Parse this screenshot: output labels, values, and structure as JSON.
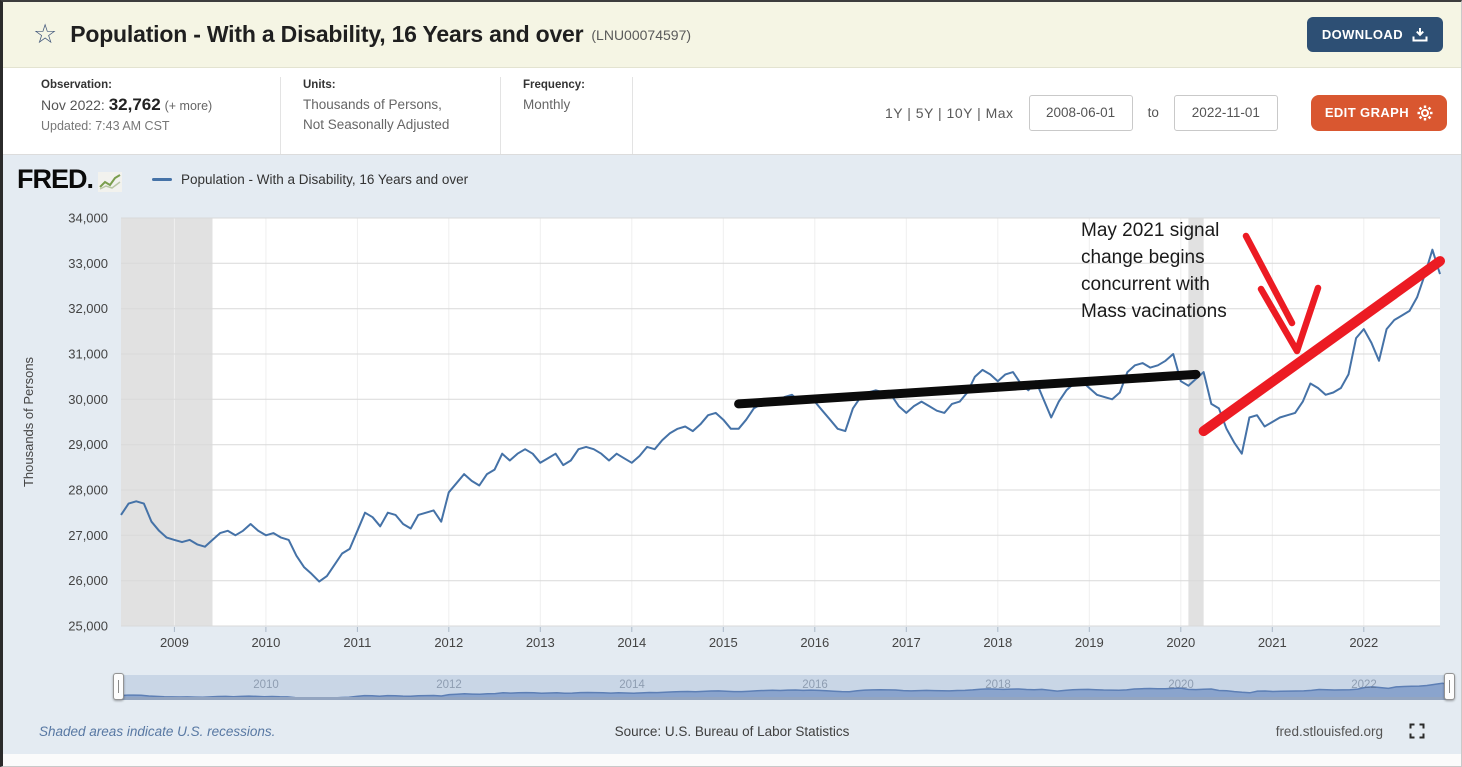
{
  "header": {
    "title": "Population - With a Disability, 16 Years and over",
    "series_id": "(LNU00074597)",
    "download_label": "DOWNLOAD"
  },
  "toolbar": {
    "observation": {
      "label": "Observation:",
      "date": "Nov 2022:",
      "value": "32,762",
      "more": "(+ more)",
      "updated": "Updated: 7:43 AM CST"
    },
    "units": {
      "label": "Units:",
      "line1": "Thousands of Persons,",
      "line2": "Not Seasonally Adjusted"
    },
    "frequency": {
      "label": "Frequency:",
      "value": "Monthly"
    },
    "ranges": "1Y | 5Y | 10Y | Max",
    "date_from": "2008-06-01",
    "to_label": "to",
    "date_to": "2022-11-01",
    "edit_graph_label": "EDIT GRAPH"
  },
  "legend": {
    "logo_text": "FRED.",
    "series_label": "Population - With a Disability, 16 Years and over"
  },
  "chart_data": {
    "type": "line",
    "title": "Population - With a Disability, 16 Years and over",
    "ylabel": "Thousands of Persons",
    "ylim": [
      25000,
      34000
    ],
    "ytick_step": 1000,
    "grid": "horizontal",
    "x_start": "2008-06",
    "x_end": "2022-11",
    "x_year_labels": [
      2009,
      2010,
      2011,
      2012,
      2013,
      2014,
      2015,
      2016,
      2017,
      2018,
      2019,
      2020,
      2021,
      2022
    ],
    "recessions": [
      {
        "from": "2008-06",
        "to": "2009-06"
      },
      {
        "from": "2020-02",
        "to": "2020-04"
      }
    ],
    "colors": {
      "line": "#4572a7",
      "recession": "#e1e1e1",
      "trend_black": "#0b0b0b",
      "trend_red": "#ec1b23"
    },
    "series": [
      {
        "name": "Population - With a Disability, 16 Years and over",
        "color": "#4572a7",
        "values": [
          27450,
          27700,
          27750,
          27700,
          27300,
          27100,
          26950,
          26900,
          26850,
          26900,
          26800,
          26750,
          26900,
          27050,
          27100,
          27000,
          27100,
          27250,
          27100,
          27000,
          27050,
          26950,
          26900,
          26550,
          26300,
          26150,
          25980,
          26100,
          26350,
          26600,
          26700,
          27100,
          27500,
          27400,
          27200,
          27500,
          27450,
          27250,
          27150,
          27450,
          27500,
          27550,
          27300,
          27950,
          28150,
          28350,
          28200,
          28100,
          28350,
          28450,
          28800,
          28650,
          28800,
          28900,
          28800,
          28600,
          28700,
          28800,
          28550,
          28650,
          28900,
          28950,
          28900,
          28800,
          28650,
          28800,
          28700,
          28600,
          28750,
          28950,
          28900,
          29100,
          29250,
          29350,
          29400,
          29300,
          29450,
          29650,
          29700,
          29550,
          29350,
          29350,
          29550,
          29800,
          29900,
          30000,
          29900,
          30050,
          30100,
          29950,
          30050,
          29950,
          29750,
          29550,
          29350,
          29300,
          29800,
          30050,
          30150,
          30200,
          30150,
          30100,
          29850,
          29700,
          29850,
          29950,
          29850,
          29750,
          29700,
          29900,
          29950,
          30150,
          30500,
          30650,
          30550,
          30400,
          30550,
          30600,
          30350,
          30200,
          30400,
          30000,
          29600,
          29950,
          30200,
          30350,
          30400,
          30250,
          30100,
          30050,
          30000,
          30150,
          30600,
          30750,
          30800,
          30700,
          30750,
          30850,
          31000,
          30400,
          30300,
          30450,
          30600,
          29900,
          29800,
          29350,
          29050,
          28800,
          29600,
          29650,
          29400,
          29500,
          29600,
          29650,
          29700,
          29950,
          30350,
          30250,
          30100,
          30150,
          30250,
          30550,
          31350,
          31550,
          31250,
          30850,
          31550,
          31750,
          31850,
          31950,
          32250,
          32750,
          33300,
          32762
        ]
      }
    ],
    "annotations": {
      "note_lines": [
        "May 2021 signal",
        "change begins",
        "concurrent with",
        "Mass vacinations"
      ],
      "note_x": 1078,
      "black_trend": {
        "x1": "2015-03",
        "v1": 29900,
        "x2": "2020-03",
        "v2": 30550
      },
      "red_trend": {
        "x1": "2020-04",
        "v1": 29300,
        "x2": "2022-11",
        "v2": 33050
      },
      "arrow_segments": [
        [
          [
            1243,
            33
          ],
          [
            1289,
            120
          ]
        ],
        [
          [
            1258,
            86
          ],
          [
            1294,
            148
          ],
          [
            1315,
            85
          ]
        ]
      ]
    }
  },
  "slider": {
    "year_labels": [
      2010,
      2012,
      2014,
      2016,
      2018,
      2020,
      2022
    ]
  },
  "footer": {
    "recession_note": "Shaded areas indicate U.S. recessions.",
    "source": "Source: U.S. Bureau of Labor Statistics",
    "site": "fred.stlouisfed.org"
  }
}
